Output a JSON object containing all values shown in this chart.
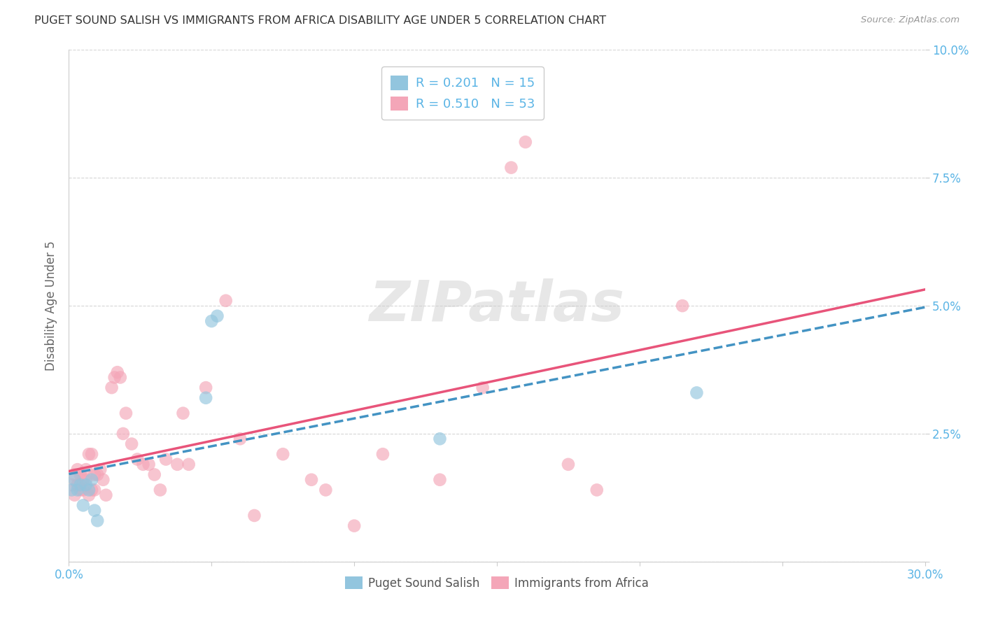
{
  "title": "PUGET SOUND SALISH VS IMMIGRANTS FROM AFRICA DISABILITY AGE UNDER 5 CORRELATION CHART",
  "source": "Source: ZipAtlas.com",
  "ylabel": "Disability Age Under 5",
  "xlim": [
    0.0,
    0.3
  ],
  "ylim": [
    0.0,
    0.1
  ],
  "xticks": [
    0.0,
    0.05,
    0.1,
    0.15,
    0.2,
    0.25,
    0.3
  ],
  "yticks": [
    0.0,
    0.025,
    0.05,
    0.075,
    0.1
  ],
  "xtick_labels": [
    "0.0%",
    "",
    "",
    "",
    "",
    "",
    "30.0%"
  ],
  "ytick_labels": [
    "",
    "2.5%",
    "5.0%",
    "7.5%",
    "10.0%"
  ],
  "legend_labels": [
    "R = 0.201   N = 15",
    "R = 0.510   N = 53"
  ],
  "legend_bottom_labels": [
    "Puget Sound Salish",
    "Immigrants from Africa"
  ],
  "blue_color": "#92c5de",
  "pink_color": "#f4a6b8",
  "blue_line_color": "#4393c3",
  "pink_line_color": "#e8547a",
  "axis_label_color": "#5ab4e5",
  "watermark_text": "ZIPatlas",
  "blue_scatter_x": [
    0.001,
    0.002,
    0.003,
    0.004,
    0.005,
    0.006,
    0.007,
    0.008,
    0.009,
    0.01,
    0.048,
    0.05,
    0.052,
    0.13,
    0.22
  ],
  "blue_scatter_y": [
    0.014,
    0.016,
    0.014,
    0.015,
    0.011,
    0.015,
    0.014,
    0.016,
    0.01,
    0.008,
    0.032,
    0.047,
    0.048,
    0.024,
    0.033
  ],
  "pink_scatter_x": [
    0.001,
    0.002,
    0.002,
    0.003,
    0.003,
    0.004,
    0.004,
    0.005,
    0.005,
    0.006,
    0.006,
    0.007,
    0.007,
    0.008,
    0.008,
    0.009,
    0.009,
    0.01,
    0.011,
    0.012,
    0.013,
    0.015,
    0.016,
    0.017,
    0.018,
    0.019,
    0.02,
    0.022,
    0.024,
    0.026,
    0.028,
    0.03,
    0.032,
    0.034,
    0.038,
    0.04,
    0.042,
    0.048,
    0.055,
    0.06,
    0.065,
    0.075,
    0.085,
    0.09,
    0.1,
    0.11,
    0.13,
    0.145,
    0.155,
    0.16,
    0.175,
    0.185,
    0.215
  ],
  "pink_scatter_y": [
    0.015,
    0.017,
    0.013,
    0.015,
    0.018,
    0.014,
    0.017,
    0.014,
    0.016,
    0.016,
    0.018,
    0.013,
    0.021,
    0.014,
    0.021,
    0.014,
    0.017,
    0.017,
    0.018,
    0.016,
    0.013,
    0.034,
    0.036,
    0.037,
    0.036,
    0.025,
    0.029,
    0.023,
    0.02,
    0.019,
    0.019,
    0.017,
    0.014,
    0.02,
    0.019,
    0.029,
    0.019,
    0.034,
    0.051,
    0.024,
    0.009,
    0.021,
    0.016,
    0.014,
    0.007,
    0.021,
    0.016,
    0.034,
    0.077,
    0.082,
    0.019,
    0.014,
    0.05
  ],
  "blue_line_x": [
    0.0,
    0.3
  ],
  "blue_line_y": [
    0.022,
    0.044
  ],
  "pink_line_x": [
    0.0,
    0.3
  ],
  "pink_line_y": [
    0.012,
    0.05
  ]
}
